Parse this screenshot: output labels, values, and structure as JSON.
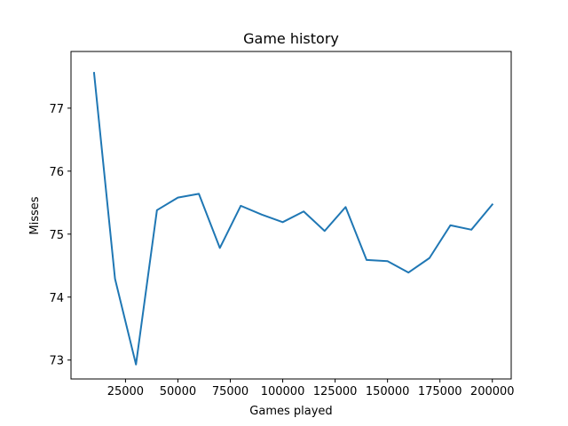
{
  "chart_data": {
    "type": "line",
    "title": "Game history",
    "xlabel": "Games played",
    "ylabel": "Misses",
    "xlim": [
      -1000,
      209000
    ],
    "ylim": [
      72.7,
      77.9
    ],
    "grid": false,
    "xticks": [
      {
        "value": 25000,
        "label": "25000"
      },
      {
        "value": 50000,
        "label": "50000"
      },
      {
        "value": 75000,
        "label": "75000"
      },
      {
        "value": 100000,
        "label": "100000"
      },
      {
        "value": 125000,
        "label": "125000"
      },
      {
        "value": 150000,
        "label": "150000"
      },
      {
        "value": 175000,
        "label": "175000"
      },
      {
        "value": 200000,
        "label": "200000"
      }
    ],
    "yticks": [
      {
        "value": 73,
        "label": "73"
      },
      {
        "value": 74,
        "label": "74"
      },
      {
        "value": 75,
        "label": "75"
      },
      {
        "value": 76,
        "label": "76"
      },
      {
        "value": 77,
        "label": "77"
      }
    ],
    "series": [
      {
        "color": "#1f77b4",
        "x": [
          10000,
          20000,
          30000,
          40000,
          50000,
          60000,
          70000,
          80000,
          90000,
          100000,
          110000,
          120000,
          130000,
          140000,
          150000,
          160000,
          170000,
          180000,
          190000,
          200000
        ],
        "y": [
          77.56,
          74.29,
          72.93,
          75.38,
          75.58,
          75.64,
          74.78,
          75.45,
          75.31,
          75.19,
          75.36,
          75.05,
          75.43,
          74.59,
          74.57,
          74.39,
          74.62,
          75.14,
          75.07,
          75.47
        ]
      }
    ]
  }
}
